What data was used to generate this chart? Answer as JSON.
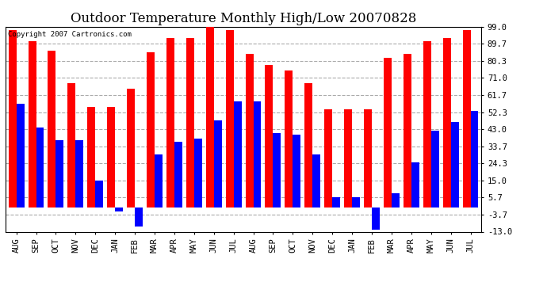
{
  "title": "Outdoor Temperature Monthly High/Low 20070828",
  "copyright_text": "Copyright 2007 Cartronics.com",
  "months": [
    "AUG",
    "SEP",
    "OCT",
    "NOV",
    "DEC",
    "JAN",
    "FEB",
    "MAR",
    "APR",
    "MAY",
    "JUN",
    "JUL",
    "AUG",
    "SEP",
    "OCT",
    "NOV",
    "DEC",
    "JAN",
    "FEB",
    "MAR",
    "APR",
    "MAY",
    "JUN",
    "JUL"
  ],
  "highs": [
    97,
    91,
    86,
    68,
    55,
    55,
    65,
    85,
    93,
    93,
    100,
    97,
    84,
    78,
    75,
    68,
    54,
    54,
    54,
    82,
    84,
    91,
    93,
    97
  ],
  "lows": [
    57,
    44,
    37,
    37,
    15,
    -2,
    -10,
    29,
    36,
    38,
    48,
    58,
    58,
    41,
    40,
    29,
    6,
    6,
    -12,
    8,
    25,
    42,
    47,
    53
  ],
  "high_color": "#FF0000",
  "low_color": "#0000FF",
  "background_color": "#FFFFFF",
  "plot_bg_color": "#FFFFFF",
  "grid_color": "#AAAAAA",
  "yticks": [
    -13.0,
    -3.7,
    5.7,
    15.0,
    24.3,
    33.7,
    43.0,
    52.3,
    61.7,
    71.0,
    80.3,
    89.7,
    99.0
  ],
  "ylim": [
    -13.0,
    99.0
  ],
  "bar_width": 0.4,
  "title_fontsize": 12,
  "tick_fontsize": 7.5,
  "copyright_fontsize": 6.5
}
